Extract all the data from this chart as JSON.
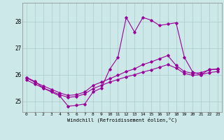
{
  "xlabel": "Windchill (Refroidissement éolien,°C)",
  "x_ticks": [
    0,
    1,
    2,
    3,
    4,
    5,
    6,
    7,
    8,
    9,
    10,
    11,
    12,
    13,
    14,
    15,
    16,
    17,
    18,
    19,
    20,
    21,
    22,
    23
  ],
  "ylim": [
    24.6,
    28.7
  ],
  "yticks": [
    25,
    26,
    27,
    28
  ],
  "bg_color": "#cce8e8",
  "line_color": "#990099",
  "grid_color": "#aacccc",
  "line1": [
    25.9,
    25.75,
    25.5,
    25.35,
    25.2,
    24.82,
    24.85,
    24.9,
    25.35,
    25.5,
    26.2,
    26.65,
    28.15,
    27.6,
    28.15,
    28.05,
    27.85,
    27.9,
    27.95,
    26.65,
    26.1,
    26.0,
    26.2,
    26.2
  ],
  "line2": [
    25.88,
    25.72,
    25.58,
    25.45,
    25.32,
    25.22,
    25.25,
    25.35,
    25.6,
    25.72,
    25.85,
    25.98,
    26.12,
    26.22,
    26.38,
    26.48,
    26.6,
    26.72,
    26.35,
    26.12,
    26.05,
    26.08,
    26.18,
    26.22
  ],
  "line3": [
    25.8,
    25.65,
    25.5,
    25.38,
    25.25,
    25.15,
    25.18,
    25.28,
    25.48,
    25.6,
    25.72,
    25.82,
    25.92,
    26.0,
    26.1,
    26.18,
    26.28,
    26.38,
    26.25,
    26.05,
    25.98,
    26.0,
    26.08,
    26.12
  ]
}
